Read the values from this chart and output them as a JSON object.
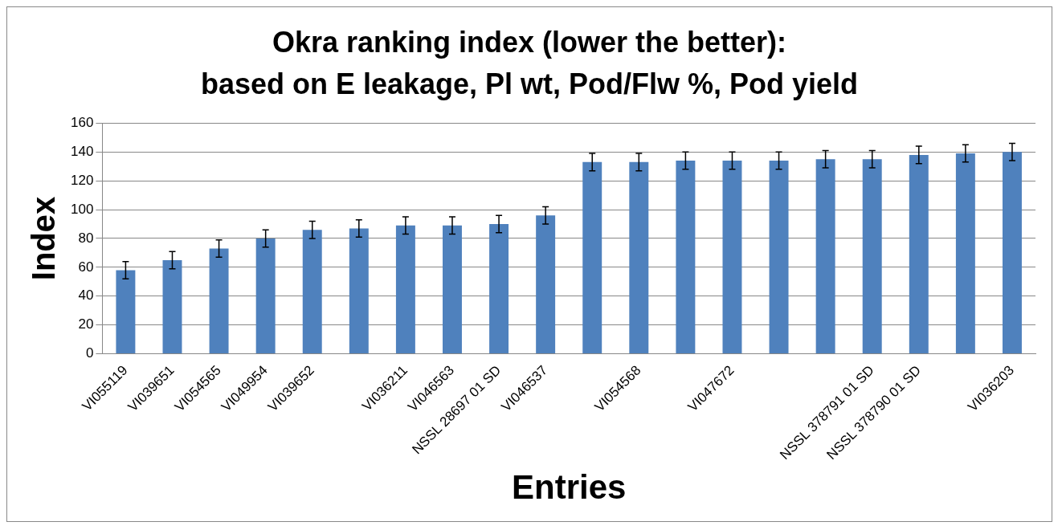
{
  "chart_data": {
    "type": "bar",
    "title": "Okra ranking index (lower the better): based on E leakage, Pl wt, Pod/Flw %, Pod yield",
    "xlabel": "Entries",
    "ylabel": "Index",
    "categories": [
      "VI055119",
      "VI039651",
      "VI054565",
      "VI049954",
      "VI039652",
      null,
      "VI036211",
      "VI046563",
      "NSSL 28697 01 SD",
      "VI046537",
      null,
      "VI054568",
      null,
      "VI047672",
      null,
      null,
      "NSSL 378791 01 SD",
      "NSSL 378790 01 SD",
      null,
      "VI036203"
    ],
    "values": [
      58,
      65,
      73,
      80,
      86,
      87,
      89,
      89,
      90,
      96,
      133,
      133,
      134,
      134,
      134,
      135,
      135,
      138,
      139,
      140
    ],
    "errors": [
      6,
      6,
      6,
      6,
      6,
      6,
      6,
      6,
      6,
      6,
      6,
      6,
      6,
      6,
      6,
      6,
      6,
      6,
      6,
      6
    ],
    "color": "#4f81bd",
    "ylim": [
      0,
      160
    ],
    "yticks": [
      0,
      20,
      40,
      60,
      80,
      100,
      120,
      140,
      160
    ],
    "grid": "y",
    "legend": false
  }
}
